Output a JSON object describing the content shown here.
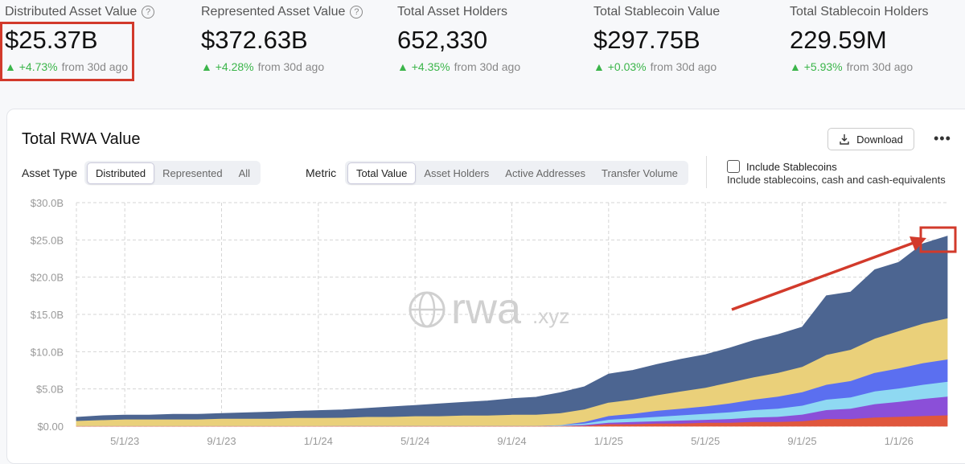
{
  "stats": [
    {
      "title": "Distributed Asset Value",
      "value": "$25.37B",
      "change": "+4.73%",
      "suffix": "from 30d ago",
      "help": true
    },
    {
      "title": "Represented Asset Value",
      "value": "$372.63B",
      "change": "+4.28%",
      "suffix": "from 30d ago",
      "help": true
    },
    {
      "title": "Total Asset Holders",
      "value": "652,330",
      "change": "+4.35%",
      "suffix": "from 30d ago",
      "help": false
    },
    {
      "title": "Total Stablecoin Value",
      "value": "$297.75B",
      "change": "+0.03%",
      "suffix": "from 30d ago",
      "help": false
    },
    {
      "title": "Total Stablecoin Holders",
      "value": "229.59M",
      "change": "+5.93%",
      "suffix": "from 30d ago",
      "help": false
    }
  ],
  "panel": {
    "title": "Total RWA Value",
    "download": "Download",
    "asset_type": {
      "label": "Asset Type",
      "options": [
        "Distributed",
        "Represented",
        "All"
      ],
      "selected": 0
    },
    "metric": {
      "label": "Metric",
      "options": [
        "Total Value",
        "Asset Holders",
        "Active Addresses",
        "Transfer Volume"
      ],
      "selected": 0
    },
    "stablecoins": {
      "label": "Include Stablecoins",
      "description": "Include stablecoins, cash and cash-equivalents"
    }
  },
  "watermark": {
    "main": "rwa",
    "suffix": ".xyz"
  },
  "chart_data": {
    "type": "area",
    "stacked": true,
    "grid": true,
    "x": [
      "3/1/23",
      "4/1/23",
      "5/1/23",
      "6/1/23",
      "7/1/23",
      "8/1/23",
      "9/1/23",
      "10/1/23",
      "11/1/23",
      "12/1/23",
      "1/1/24",
      "2/1/24",
      "3/1/24",
      "4/1/24",
      "5/1/24",
      "6/1/24",
      "7/1/24",
      "8/1/24",
      "9/1/24",
      "10/1/24",
      "11/1/24",
      "12/1/24",
      "1/1/25",
      "2/1/25",
      "3/1/25",
      "4/1/25",
      "5/1/25",
      "6/1/25",
      "7/1/25",
      "8/1/25",
      "9/1/25",
      "10/1/25",
      "11/1/25",
      "12/1/25",
      "1/1/26",
      "2/1/26",
      "3/1/26"
    ],
    "xticks": [
      "5/1/23",
      "9/1/23",
      "1/1/24",
      "5/1/24",
      "9/1/24",
      "1/1/25",
      "5/1/25",
      "9/1/25",
      "1/1/26"
    ],
    "ylim": [
      0,
      30
    ],
    "yticks": [
      {
        "value": 0,
        "label": "$0.00"
      },
      {
        "value": 5,
        "label": "$5.0B"
      },
      {
        "value": 10,
        "label": "$10.0B"
      },
      {
        "value": 15,
        "label": "$15.0B"
      },
      {
        "value": 20,
        "label": "$20.0B"
      },
      {
        "value": 25,
        "label": "$25.0B"
      },
      {
        "value": 30,
        "label": "$30.0B"
      }
    ],
    "series": [
      {
        "color": "#e0573d",
        "values": [
          0.05,
          0.05,
          0.05,
          0.05,
          0.05,
          0.05,
          0.05,
          0.05,
          0.05,
          0.05,
          0.05,
          0.08,
          0.08,
          0.08,
          0.08,
          0.08,
          0.08,
          0.08,
          0.08,
          0.08,
          0.08,
          0.1,
          0.3,
          0.3,
          0.4,
          0.4,
          0.5,
          0.5,
          0.6,
          0.6,
          0.7,
          1.0,
          1.0,
          1.2,
          1.3,
          1.4,
          1.5
        ]
      },
      {
        "color": "#8b4fd8",
        "values": [
          0,
          0,
          0,
          0,
          0,
          0,
          0,
          0,
          0,
          0,
          0,
          0,
          0,
          0,
          0,
          0,
          0,
          0,
          0,
          0,
          0,
          0.1,
          0.2,
          0.3,
          0.3,
          0.4,
          0.4,
          0.5,
          0.6,
          0.7,
          0.9,
          1.2,
          1.4,
          1.8,
          2.0,
          2.3,
          2.5
        ]
      },
      {
        "color": "#8fd9f2",
        "values": [
          0,
          0,
          0,
          0,
          0,
          0,
          0,
          0,
          0,
          0,
          0,
          0,
          0,
          0,
          0,
          0,
          0,
          0,
          0,
          0,
          0.1,
          0.2,
          0.4,
          0.5,
          0.6,
          0.7,
          0.8,
          0.9,
          1.0,
          1.1,
          1.2,
          1.4,
          1.5,
          1.7,
          1.8,
          1.9,
          2.0
        ]
      },
      {
        "color": "#5b6ff0",
        "values": [
          0,
          0,
          0,
          0,
          0,
          0,
          0,
          0,
          0,
          0,
          0,
          0,
          0,
          0,
          0,
          0,
          0,
          0,
          0,
          0,
          0,
          0.2,
          0.5,
          0.6,
          0.8,
          0.9,
          1.0,
          1.2,
          1.4,
          1.6,
          1.8,
          2.0,
          2.2,
          2.5,
          2.7,
          2.9,
          3.0
        ]
      },
      {
        "color": "#ead07a",
        "values": [
          0.7,
          0.8,
          0.9,
          0.9,
          0.9,
          0.9,
          1.0,
          1.0,
          1.0,
          1.1,
          1.1,
          1.1,
          1.2,
          1.2,
          1.3,
          1.3,
          1.4,
          1.4,
          1.5,
          1.5,
          1.6,
          1.7,
          1.8,
          1.9,
          2.1,
          2.3,
          2.5,
          2.8,
          3.0,
          3.2,
          3.4,
          4.0,
          4.2,
          4.6,
          5.0,
          5.3,
          5.5
        ]
      },
      {
        "color": "#4c6591",
        "values": [
          0.45,
          0.55,
          0.55,
          0.55,
          0.65,
          0.65,
          0.65,
          0.75,
          0.85,
          0.85,
          0.95,
          1.02,
          1.12,
          1.32,
          1.42,
          1.62,
          1.72,
          1.92,
          2.12,
          2.32,
          2.72,
          3.0,
          3.8,
          3.9,
          4.1,
          4.3,
          4.4,
          4.6,
          4.9,
          5.1,
          5.3,
          7.9,
          7.7,
          9.2,
          9.2,
          10.7,
          11.0
        ]
      }
    ]
  }
}
